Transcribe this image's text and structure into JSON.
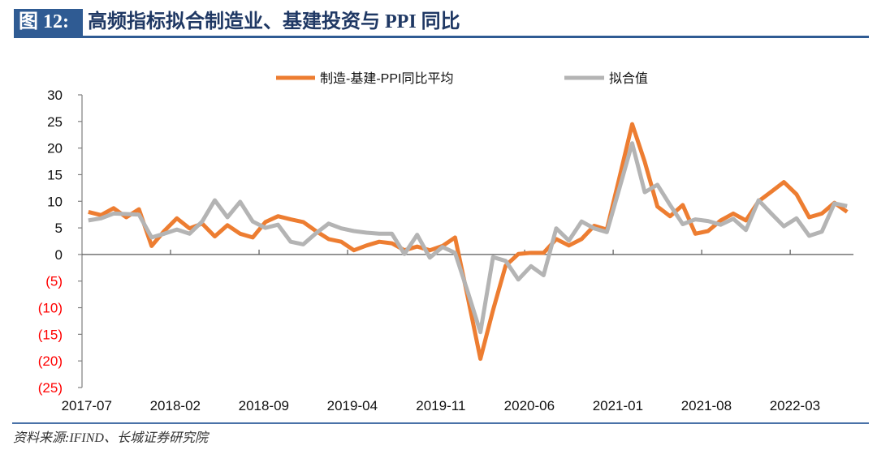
{
  "header": {
    "figure_label": "图 12:",
    "title": "高频指标拟合制造业、基建投资与 PPI 同比"
  },
  "footer": {
    "source": "资料来源:IFIND、长城证券研究院"
  },
  "colors": {
    "series_actual": "#ed7d31",
    "series_fit": "#b4b4b4",
    "negative_tick": "#ff0000",
    "accent": "#2f5b93"
  },
  "chart_data": {
    "type": "line",
    "title": "高频指标拟合制造业、基建投资与 PPI 同比",
    "xlabel": "",
    "ylabel": "",
    "ylim": [
      -25,
      30
    ],
    "y_ticks": [
      30,
      25,
      20,
      15,
      10,
      5,
      0,
      -5,
      -10,
      -15,
      -20,
      -25
    ],
    "y_tick_labels": [
      "30",
      "25",
      "20",
      "15",
      "10",
      "5",
      "0",
      "(5)",
      "(10)",
      "(15)",
      "(20)",
      "(25)"
    ],
    "x_tick_labels": [
      "2017-07",
      "2018-02",
      "2018-09",
      "2019-04",
      "2019-11",
      "2020-06",
      "2021-01",
      "2021-08",
      "2022-03"
    ],
    "x_tick_every": 7,
    "grid": false,
    "legend_position": "top",
    "x_start": "2017-07",
    "x_end": "2022-07",
    "x_count": 61,
    "series": [
      {
        "name": "制造-基建-PPI同比平均",
        "color": "#ed7d31",
        "values": [
          8.0,
          7.4,
          8.7,
          7.0,
          8.5,
          1.6,
          4.4,
          6.8,
          4.9,
          5.8,
          3.4,
          5.5,
          3.9,
          3.2,
          6.1,
          7.2,
          6.6,
          6.1,
          4.4,
          2.9,
          2.4,
          0.8,
          1.7,
          2.4,
          2.1,
          0.8,
          1.5,
          0.8,
          1.6,
          3.2,
          -8.0,
          -19.6,
          -10.5,
          -2.1,
          0.1,
          0.3,
          0.3,
          2.9,
          1.7,
          2.9,
          5.4,
          4.7,
          14.5,
          24.5,
          17.4,
          9.0,
          7.2,
          9.3,
          3.9,
          4.4,
          6.4,
          7.7,
          6.4,
          10.0,
          11.8,
          13.6,
          11.3,
          7.0,
          7.7,
          9.7,
          8.0
        ]
      },
      {
        "name": "拟合值",
        "color": "#b4b4b4",
        "values": [
          6.4,
          6.8,
          7.7,
          7.6,
          7.5,
          3.2,
          3.9,
          4.7,
          3.9,
          6.2,
          10.2,
          7.0,
          9.9,
          6.2,
          5.0,
          5.6,
          2.4,
          1.9,
          4.0,
          5.8,
          4.9,
          4.4,
          4.1,
          3.9,
          3.9,
          0.1,
          3.7,
          -0.6,
          1.4,
          0.3,
          -7.0,
          -14.6,
          -0.5,
          -1.2,
          -4.7,
          -2.2,
          -3.9,
          4.9,
          2.6,
          6.2,
          4.9,
          4.2,
          12.5,
          20.9,
          11.7,
          13.1,
          9.3,
          5.7,
          6.6,
          6.3,
          5.6,
          6.7,
          4.6,
          10.2,
          7.7,
          5.3,
          6.8,
          3.5,
          4.3,
          9.6,
          9.1
        ]
      }
    ]
  }
}
